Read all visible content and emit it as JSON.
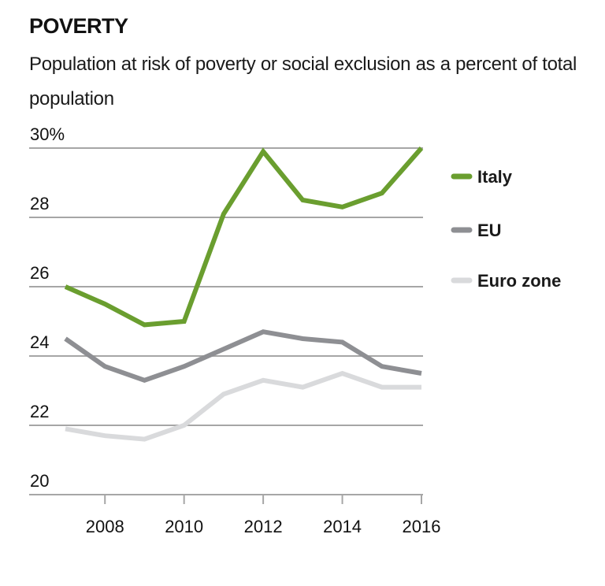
{
  "chart_data": {
    "type": "line",
    "title": "POVERTY",
    "subtitle": "Population at risk of poverty or social exclusion as a percent of total population",
    "xlabel": "",
    "ylabel": "",
    "x": [
      2007,
      2008,
      2009,
      2010,
      2011,
      2012,
      2013,
      2014,
      2015,
      2016
    ],
    "xlim": [
      2007,
      2016
    ],
    "ylim": [
      20,
      30
    ],
    "y_ticks": [
      20,
      22,
      24,
      26,
      28,
      30
    ],
    "y_tick_labels": [
      "20",
      "22",
      "24",
      "26",
      "28",
      "30%"
    ],
    "x_ticks": [
      2008,
      2010,
      2012,
      2014,
      2016
    ],
    "x_tick_labels": [
      "2008",
      "2010",
      "2012",
      "2014",
      "2016"
    ],
    "grid": "horizontal",
    "legend_position": "right",
    "series": [
      {
        "name": "Italy",
        "color": "#6a9e2f",
        "values": [
          26.0,
          25.5,
          24.9,
          25.0,
          28.1,
          29.9,
          28.5,
          28.3,
          28.7,
          30.0
        ]
      },
      {
        "name": "EU",
        "color": "#8e8f93",
        "values": [
          24.5,
          23.7,
          23.3,
          23.7,
          24.2,
          24.7,
          24.5,
          24.4,
          23.7,
          23.5
        ]
      },
      {
        "name": "Euro zone",
        "color": "#d9dadc",
        "values": [
          21.9,
          21.7,
          21.6,
          22.0,
          22.9,
          23.3,
          23.1,
          23.5,
          23.1,
          23.1
        ]
      }
    ]
  },
  "colors": {
    "gridline": "#a6a6a6",
    "text": "#111111"
  }
}
